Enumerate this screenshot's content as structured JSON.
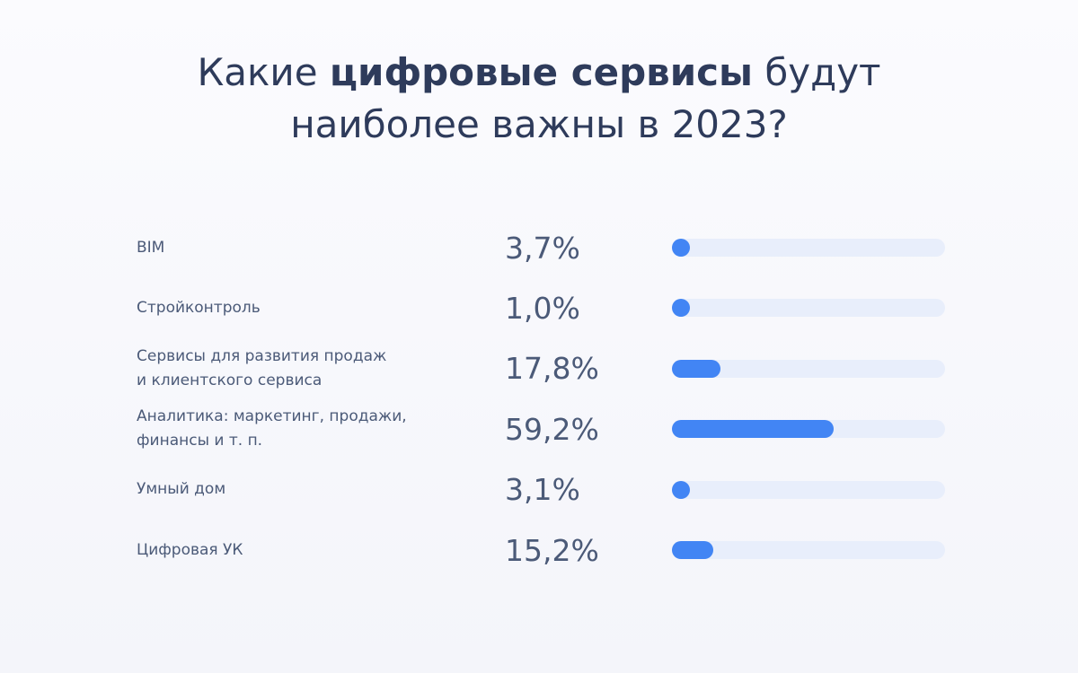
{
  "chart_data": {
    "type": "bar",
    "orientation": "horizontal",
    "title": [
      "Какие",
      "цифровые сервисы",
      "будут наиболее важны в 2023?"
    ],
    "categories": [
      "BIM",
      "Стройконтроль",
      "Сервисы для развития продаж\nи клиентского сервиса",
      "Аналитика: маркетинг, продажи,\nфинансы и т. п.",
      "Умный дом",
      "Цифровая УК"
    ],
    "values": [
      3.7,
      1.0,
      17.8,
      59.2,
      3.1,
      15.2
    ],
    "value_labels": [
      "3,7%",
      "1,0%",
      "17,8%",
      "59,2%",
      "3,1%",
      "15,2%"
    ],
    "xlim": [
      0,
      100
    ],
    "color": "#4285f4",
    "track_color": "#e8eefb"
  }
}
